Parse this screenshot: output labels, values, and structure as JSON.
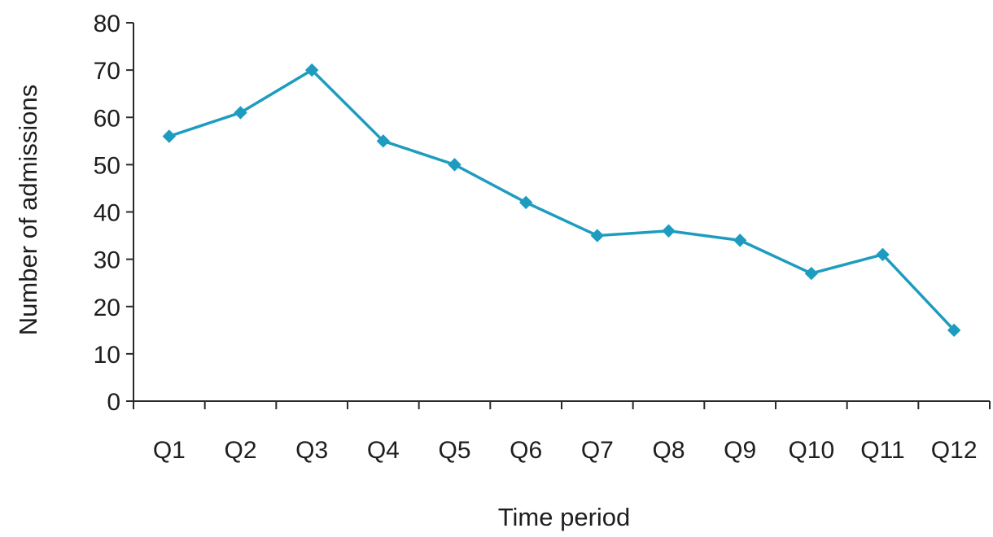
{
  "chart_data": {
    "type": "line",
    "title": "",
    "xlabel": "Time period",
    "ylabel": "Number of admissions",
    "categories": [
      "Q1",
      "Q2",
      "Q3",
      "Q4",
      "Q5",
      "Q6",
      "Q7",
      "Q8",
      "Q9",
      "Q10",
      "Q11",
      "Q12"
    ],
    "series": [
      {
        "values": [
          56,
          61,
          70,
          55,
          50,
          42,
          35,
          36,
          34,
          27,
          31,
          15
        ],
        "color": "#1e9cc0"
      }
    ],
    "ylim": [
      0,
      80
    ],
    "yticks": [
      0,
      10,
      20,
      30,
      40,
      50,
      60,
      70,
      80
    ],
    "grid": false,
    "legend": "none",
    "marker": "diamond"
  }
}
